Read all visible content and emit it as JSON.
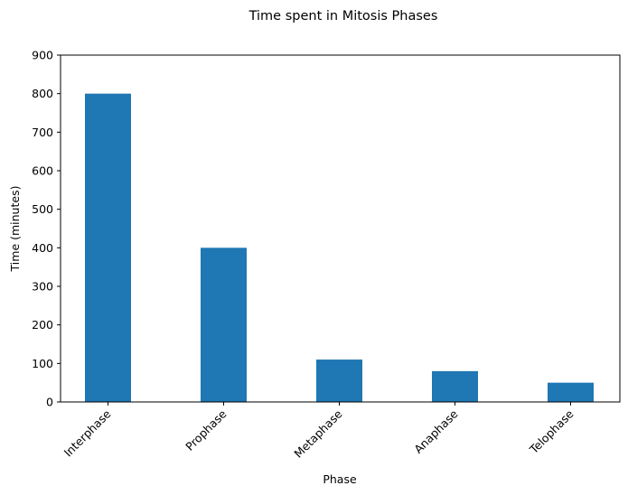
{
  "chart_data": {
    "type": "bar",
    "title": "Time spent in Mitosis Phases",
    "xlabel": "Phase",
    "ylabel": "Time (minutes)",
    "categories": [
      "Interphase",
      "Prophase",
      "Metaphase",
      "Anaphase",
      "Telophase"
    ],
    "values": [
      800,
      400,
      110,
      80,
      50
    ],
    "ylim": [
      0,
      900
    ],
    "yticks": [
      0,
      100,
      200,
      300,
      400,
      500,
      600,
      700,
      800,
      900
    ],
    "grid": false,
    "legend": "none",
    "bar_color": "#1f77b4"
  }
}
